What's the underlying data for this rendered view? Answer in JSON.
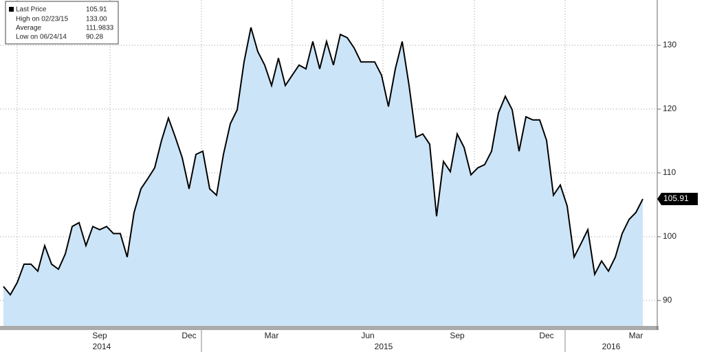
{
  "chart_data": {
    "type": "area",
    "legend_box": [
      {
        "label": "Last Price",
        "value": "105.91"
      },
      {
        "label": "High on 02/23/15",
        "value": "133.00"
      },
      {
        "label": "Average",
        "value": "111.9833"
      },
      {
        "label": "Low on 06/24/14",
        "value": "90.28"
      }
    ],
    "categories": [
      null,
      null,
      null,
      null,
      null,
      null,
      null,
      null,
      null,
      null,
      null,
      null,
      null,
      null,
      "Sep",
      null,
      null,
      null,
      null,
      null,
      null,
      null,
      null,
      null,
      null,
      null,
      null,
      "Dec",
      null,
      null,
      null,
      null,
      null,
      null,
      null,
      null,
      null,
      null,
      null,
      "Mar",
      null,
      null,
      null,
      null,
      null,
      null,
      null,
      null,
      null,
      null,
      null,
      null,
      null,
      "Jun",
      null,
      null,
      null,
      null,
      null,
      null,
      null,
      null,
      null,
      null,
      null,
      null,
      "Sep",
      null,
      null,
      null,
      null,
      null,
      null,
      null,
      null,
      null,
      null,
      null,
      null,
      "Dec",
      null,
      null,
      null,
      null,
      null,
      null,
      null,
      null,
      null,
      null,
      null,
      null,
      "Mar",
      null
    ],
    "year_labels": [
      "2014",
      "2015",
      "2016"
    ],
    "series": [
      {
        "name": "Last Price",
        "color": "#000000",
        "fill": "#cce4f7",
        "values": [
          92.2,
          90.9,
          92.8,
          95.7,
          95.7,
          94.6,
          98.6,
          95.7,
          94.9,
          97.3,
          101.6,
          102.2,
          98.6,
          101.6,
          101.1,
          101.6,
          100.5,
          100.5,
          96.8,
          103.8,
          107.5,
          109.1,
          110.8,
          115.1,
          118.6,
          115.6,
          112.4,
          107.5,
          112.9,
          113.4,
          107.5,
          106.5,
          112.9,
          117.7,
          119.9,
          127.4,
          132.8,
          129.0,
          126.9,
          123.7,
          128.0,
          123.7,
          125.3,
          126.9,
          126.3,
          130.6,
          126.3,
          130.6,
          126.9,
          131.7,
          131.2,
          129.6,
          127.4,
          127.4,
          127.4,
          125.3,
          120.4,
          126.3,
          130.6,
          123.7,
          115.6,
          116.1,
          114.5,
          103.2,
          111.8,
          110.2,
          116.1,
          114.0,
          109.7,
          110.8,
          111.3,
          113.4,
          119.4,
          122.0,
          119.9,
          113.4,
          118.8,
          118.3,
          118.3,
          115.1,
          106.5,
          108.1,
          104.8,
          96.8,
          98.9,
          101.1,
          94.1,
          96.2,
          94.6,
          96.8,
          100.5,
          102.7,
          103.8,
          105.91
        ]
      }
    ],
    "ylim": [
      85.8,
      137.1
    ],
    "yticks": [
      90,
      100,
      110,
      120,
      130
    ],
    "grid": true
  }
}
